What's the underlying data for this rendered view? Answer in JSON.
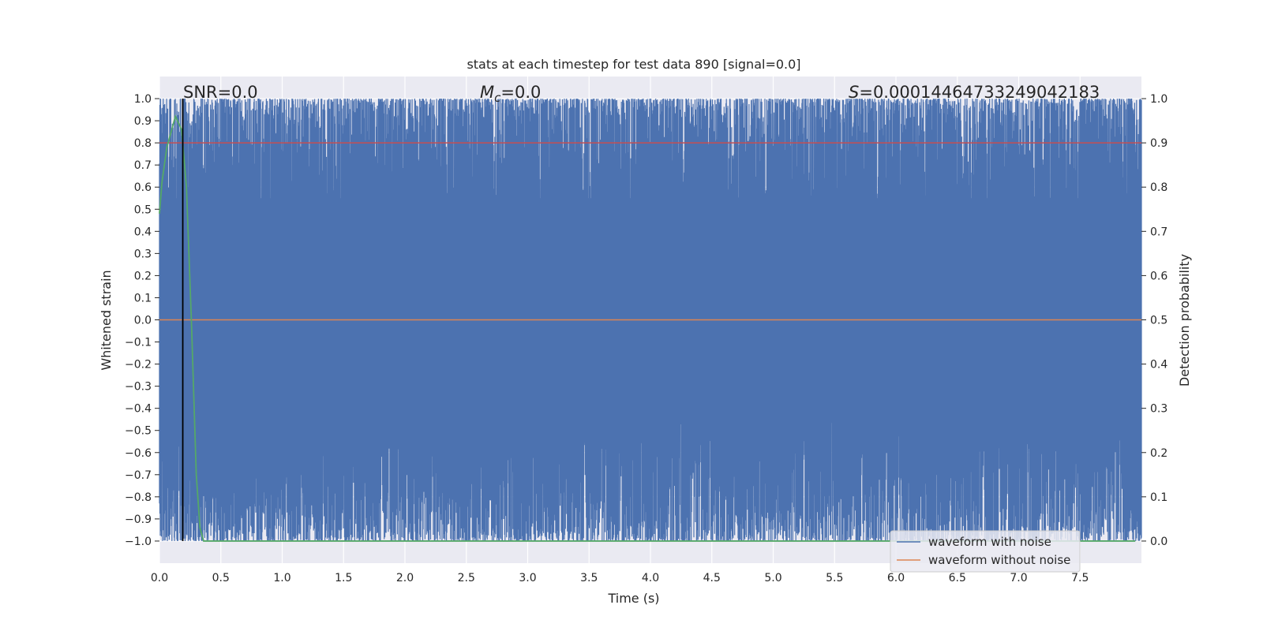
{
  "chart_data": {
    "type": "line",
    "title": "stats at each timestep for test data 890 [signal=0.0]",
    "xlabel": "Time (s)",
    "ylabel": "Whitened strain",
    "ylabel_right": "Detection probability",
    "xlim": [
      0.0,
      8.0
    ],
    "ylim": [
      -1.1,
      1.1
    ],
    "ylim_right": [
      -0.05,
      1.05
    ],
    "x_ticks": [
      "0.0",
      "0.5",
      "1.0",
      "1.5",
      "2.0",
      "2.5",
      "3.0",
      "3.5",
      "4.0",
      "4.5",
      "5.0",
      "5.5",
      "6.0",
      "6.5",
      "7.0",
      "7.5"
    ],
    "y_ticks": [
      "1.0",
      "0.9",
      "0.8",
      "0.7",
      "0.6",
      "0.5",
      "0.4",
      "0.3",
      "0.2",
      "0.1",
      "0.0",
      "−0.1",
      "−0.2",
      "−0.3",
      "−0.4",
      "−0.5",
      "−0.6",
      "−0.7",
      "−0.8",
      "−0.9",
      "−1.0"
    ],
    "y_ticks_right": [
      "1.0",
      "0.9",
      "0.8",
      "0.7",
      "0.6",
      "0.5",
      "0.4",
      "0.3",
      "0.2",
      "0.1",
      "0.0"
    ],
    "grid": true,
    "legend_position": "lower-right",
    "annotations": {
      "snr": "SNR=0.0",
      "mc_symbol": "M",
      "mc_sub": "c",
      "mc_value": "=0.0",
      "s_symbol": "S",
      "s_value": "=0.00014464733249042183"
    },
    "colors": {
      "noise": "#4c72b0",
      "clean": "#dd8452",
      "probability": "#55a868",
      "threshold": "#c44e52",
      "marker": "#000000",
      "background": "#eaeaf2",
      "grid": "#ffffff"
    },
    "series": [
      {
        "name": "waveform with noise",
        "description": "whitened strain noise spanning roughly -1.0 to 1.0 across the full time range",
        "value_range": [
          -1.0,
          1.0
        ]
      },
      {
        "name": "waveform without noise",
        "x": [
          0.0,
          8.0
        ],
        "y": [
          0.0,
          0.0
        ]
      },
      {
        "axis": "right",
        "x": [
          0.0,
          0.02,
          0.06,
          0.1,
          0.13,
          0.18,
          0.22,
          0.26,
          0.3,
          0.33,
          0.36,
          0.4,
          1.0,
          2.0,
          3.0,
          4.0,
          5.0,
          6.0,
          7.0,
          7.95
        ],
        "y": [
          0.74,
          0.81,
          0.89,
          0.93,
          0.96,
          0.93,
          0.8,
          0.5,
          0.15,
          0.03,
          0.0,
          0.0,
          0.0,
          0.0,
          0.0,
          0.0,
          0.0,
          0.0,
          0.0,
          0.0
        ]
      },
      {
        "axis": "right",
        "x": [
          0.0,
          8.0
        ],
        "y": [
          0.9,
          0.9
        ]
      }
    ],
    "vertical_marker_x": 0.19
  }
}
